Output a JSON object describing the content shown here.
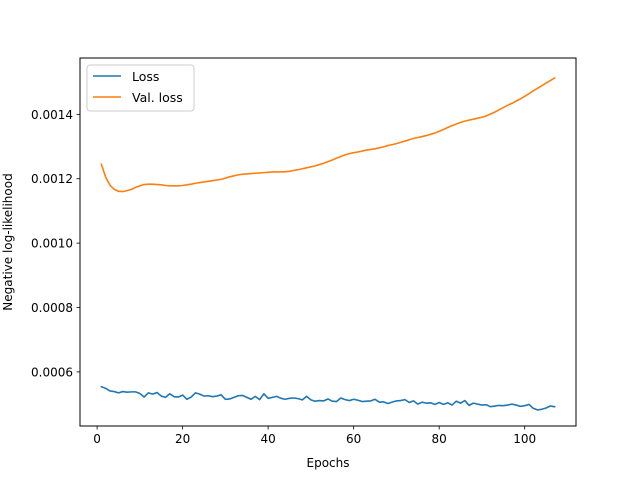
{
  "chart_data": {
    "type": "line",
    "title": "",
    "xlabel": "Epochs",
    "ylabel": "Negative log-likelihood",
    "xlim": [
      -4,
      112
    ],
    "ylim": [
      0.000432,
      0.001575
    ],
    "xticks": [
      0,
      20,
      40,
      60,
      80,
      100
    ],
    "xtick_labels": [
      "0",
      "20",
      "40",
      "60",
      "80",
      "100"
    ],
    "yticks": [
      0.0006,
      0.0008,
      0.001,
      0.0012,
      0.0014
    ],
    "ytick_labels": [
      "0.0006",
      "0.0008",
      "0.0010",
      "0.0012",
      "0.0014"
    ],
    "grid": false,
    "legend_position": "top-left",
    "series": [
      {
        "name": "Loss",
        "color": "#1f77b4",
        "x": [
          1,
          2,
          3,
          4,
          5,
          6,
          7,
          8,
          9,
          10,
          11,
          12,
          13,
          14,
          15,
          16,
          17,
          18,
          19,
          20,
          21,
          22,
          23,
          24,
          25,
          26,
          27,
          28,
          29,
          30,
          31,
          32,
          33,
          34,
          35,
          36,
          37,
          38,
          39,
          40,
          41,
          42,
          43,
          44,
          45,
          46,
          47,
          48,
          49,
          50,
          51,
          52,
          53,
          54,
          55,
          56,
          57,
          58,
          59,
          60,
          61,
          62,
          63,
          64,
          65,
          66,
          67,
          68,
          69,
          70,
          71,
          72,
          73,
          74,
          75,
          76,
          77,
          78,
          79,
          80,
          81,
          82,
          83,
          84,
          85,
          86,
          87,
          88,
          89,
          90,
          91,
          92,
          93,
          94,
          95,
          96,
          97,
          98,
          99,
          100,
          101,
          102,
          103,
          104,
          105,
          106,
          107
        ],
        "values": [
          0.000554,
          0.000549,
          0.000541,
          0.000539,
          0.000535,
          0.000539,
          0.000537,
          0.000538,
          0.000538,
          0.000533,
          0.000522,
          0.000535,
          0.000531,
          0.000536,
          0.000525,
          0.000521,
          0.000532,
          0.000523,
          0.000522,
          0.000528,
          0.000515,
          0.000522,
          0.000535,
          0.000531,
          0.000525,
          0.000526,
          0.000523,
          0.000525,
          0.000529,
          0.000515,
          0.000516,
          0.000521,
          0.000526,
          0.000527,
          0.000521,
          0.000515,
          0.000524,
          0.000514,
          0.000532,
          0.000518,
          0.000521,
          0.000524,
          0.000518,
          0.000515,
          0.000518,
          0.000519,
          0.000517,
          0.000513,
          0.000524,
          0.000513,
          0.000509,
          0.000511,
          0.00051,
          0.000516,
          0.000509,
          0.000508,
          0.000519,
          0.000514,
          0.000511,
          0.000515,
          0.000512,
          0.000508,
          0.000509,
          0.00051,
          0.000515,
          0.000506,
          0.000507,
          0.000502,
          0.000506,
          0.00051,
          0.000511,
          0.000514,
          0.000505,
          0.00051,
          0.0005,
          0.000506,
          0.000503,
          0.000504,
          0.000499,
          0.000505,
          0.000499,
          0.000504,
          0.000497,
          0.000509,
          0.000503,
          0.000511,
          0.000496,
          0.000503,
          0.0005,
          0.000497,
          0.000498,
          0.000492,
          0.000494,
          0.000496,
          0.000495,
          0.000497,
          0.0005,
          0.000497,
          0.000493,
          0.000495,
          0.000499,
          0.000487,
          0.000482,
          0.000484,
          0.000488,
          0.000494,
          0.000492
        ]
      },
      {
        "name": "Val. loss",
        "color": "#ff7f0e",
        "x": [
          1,
          2,
          3,
          4,
          5,
          6,
          7,
          8,
          9,
          10,
          11,
          12,
          13,
          14,
          15,
          16,
          17,
          18,
          19,
          20,
          21,
          22,
          23,
          24,
          25,
          26,
          27,
          28,
          29,
          30,
          31,
          32,
          33,
          34,
          35,
          36,
          37,
          38,
          39,
          40,
          41,
          42,
          43,
          44,
          45,
          46,
          47,
          48,
          49,
          50,
          51,
          52,
          53,
          54,
          55,
          56,
          57,
          58,
          59,
          60,
          61,
          62,
          63,
          64,
          65,
          66,
          67,
          68,
          69,
          70,
          71,
          72,
          73,
          74,
          75,
          76,
          77,
          78,
          79,
          80,
          81,
          82,
          83,
          84,
          85,
          86,
          87,
          88,
          89,
          90,
          91,
          92,
          93,
          94,
          95,
          96,
          97,
          98,
          99,
          100,
          101,
          102,
          103,
          104,
          105,
          106,
          107
        ],
        "values": [
          0.001245,
          0.001205,
          0.00118,
          0.001167,
          0.001161,
          0.00116,
          0.001163,
          0.001167,
          0.001173,
          0.001178,
          0.001182,
          0.001183,
          0.001183,
          0.001182,
          0.001181,
          0.001179,
          0.001178,
          0.001178,
          0.001178,
          0.001179,
          0.001181,
          0.001183,
          0.001186,
          0.001188,
          0.00119,
          0.001192,
          0.001194,
          0.001196,
          0.001198,
          0.001202,
          0.001206,
          0.001209,
          0.001212,
          0.001214,
          0.001215,
          0.001216,
          0.001217,
          0.001218,
          0.001219,
          0.00122,
          0.001221,
          0.001221,
          0.001221,
          0.001222,
          0.001223,
          0.001226,
          0.001228,
          0.001231,
          0.001234,
          0.001237,
          0.00124,
          0.001244,
          0.001248,
          0.001253,
          0.001258,
          0.001264,
          0.001269,
          0.001274,
          0.001278,
          0.001281,
          0.001283,
          0.001286,
          0.001289,
          0.001291,
          0.001293,
          0.001296,
          0.001299,
          0.001303,
          0.001306,
          0.001309,
          0.001313,
          0.001317,
          0.001321,
          0.001325,
          0.001328,
          0.001331,
          0.001334,
          0.001338,
          0.001342,
          0.001347,
          0.001353,
          0.001359,
          0.001365,
          0.00137,
          0.001375,
          0.001379,
          0.001382,
          0.001385,
          0.001388,
          0.001391,
          0.001395,
          0.001401,
          0.001407,
          0.001414,
          0.001421,
          0.001428,
          0.001434,
          0.001441,
          0.001448,
          0.001456,
          0.001464,
          0.001473,
          0.001481,
          0.001489,
          0.001497,
          0.001505,
          0.001513
        ]
      }
    ]
  }
}
